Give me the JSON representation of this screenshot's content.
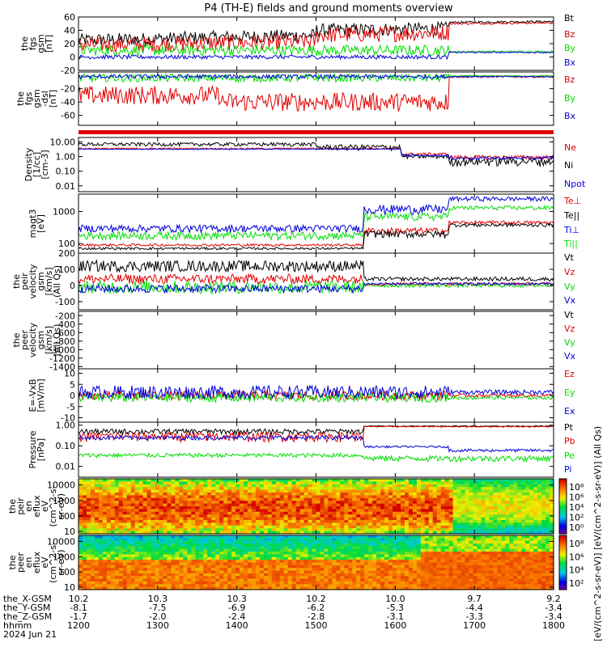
{
  "chart_data": {
    "type": "line",
    "title": "P4 (TH-E) fields and ground moments overview",
    "time_axis": {
      "ticks": [
        "1200",
        "1300",
        "1400",
        "1500",
        "1600",
        "1700",
        "1800"
      ],
      "rows": [
        {
          "label": "the_X-GSM",
          "values": [
            "10.2",
            "10.3",
            "10.3",
            "10.2",
            "10.0",
            "9.7",
            "9.2"
          ]
        },
        {
          "label": "the_Y-GSM",
          "values": [
            "-8.1",
            "-7.5",
            "-6.9",
            "-6.2",
            "-5.3",
            "-4.4",
            "-3.4"
          ]
        },
        {
          "label": "the_Z-GSM",
          "values": [
            "-1.7",
            "-2.0",
            "-2.4",
            "-2.8",
            "-3.1",
            "-3.3",
            "-3.4"
          ]
        },
        {
          "label": "hhmm",
          "values": [
            "1200",
            "1300",
            "1400",
            "1500",
            "1600",
            "1700",
            "1800"
          ]
        }
      ],
      "date": "2024 Jun 21"
    },
    "panels": [
      {
        "id": "fgs_gsm",
        "ylabel": [
          "the",
          "fgs",
          "gsm",
          "[nT]"
        ],
        "ylim": [
          -20,
          60
        ],
        "yticks": [
          "60",
          "40",
          "20",
          "0",
          "-20"
        ],
        "scale": "linear",
        "series": [
          {
            "name": "Bt",
            "color": "#000000"
          },
          {
            "name": "Bz",
            "color": "#e00000"
          },
          {
            "name": "By",
            "color": "#00dd00"
          },
          {
            "name": "Bx",
            "color": "#0000dd"
          }
        ]
      },
      {
        "id": "fgs_dsl",
        "ylabel": [
          "the",
          "fgs",
          "gsm",
          "-dsl",
          "[nT]"
        ],
        "ylim": [
          -75,
          5
        ],
        "yticks": [
          "-20",
          "-40",
          "-60"
        ],
        "scale": "linear",
        "series": [
          {
            "name": "Bz",
            "color": "#e00000"
          },
          {
            "name": "By",
            "color": "#00dd00"
          },
          {
            "name": "Bx",
            "color": "#0000dd"
          }
        ]
      },
      {
        "id": "density",
        "ylabel": [
          "Density",
          "[1/cc]",
          "[cm-3]"
        ],
        "ylim": [
          0.004,
          20
        ],
        "yticks": [
          "10.00",
          "1.00",
          "0.10",
          "0.01"
        ],
        "scale": "log",
        "series": [
          {
            "name": "Ne",
            "color": "#e00000"
          },
          {
            "name": "Ni",
            "color": "#000000"
          },
          {
            "name": "Npot",
            "color": "#0000dd"
          }
        ]
      },
      {
        "id": "temperature",
        "ylabel": [
          "magt3",
          "[eV]"
        ],
        "ylim": [
          50,
          3500
        ],
        "yticks": [
          "1000",
          "100"
        ],
        "scale": "log",
        "series": [
          {
            "name": "Te⊥",
            "color": "#e00000"
          },
          {
            "name": "Te||",
            "color": "#000000"
          },
          {
            "name": "Ti⊥",
            "color": "#0000dd"
          },
          {
            "name": "Ti||",
            "color": "#00dd00"
          }
        ]
      },
      {
        "id": "peir_velocity",
        "ylabel": [
          "the",
          "peir",
          "velocity",
          "gsm",
          "[km/s]",
          "(All Qs)"
        ],
        "ylim": [
          -150,
          200
        ],
        "yticks": [
          "200",
          "100",
          "0",
          "-100"
        ],
        "scale": "linear",
        "series": [
          {
            "name": "Vt",
            "color": "#000000"
          },
          {
            "name": "Vz",
            "color": "#e00000"
          },
          {
            "name": "Vy",
            "color": "#00dd00"
          },
          {
            "name": "Vx",
            "color": "#0000dd"
          }
        ]
      },
      {
        "id": "peer_velocity",
        "ylabel": [
          "the",
          "peer",
          "velocity",
          "gsm",
          "[km/s]",
          "(All Qs)"
        ],
        "ylim": [
          -1450,
          -100
        ],
        "yticks": [
          "-200",
          "-400",
          "-600",
          "-800",
          "-1000",
          "-1200",
          "-1400"
        ],
        "scale": "linear",
        "series": [
          {
            "name": "Vt",
            "color": "#000000"
          },
          {
            "name": "Vz",
            "color": "#e00000"
          },
          {
            "name": "Vy",
            "color": "#00dd00"
          },
          {
            "name": "Vx",
            "color": "#0000dd"
          }
        ]
      },
      {
        "id": "efield",
        "ylabel": [
          "E=-VxB",
          "[mV/m]"
        ],
        "ylim": [
          -12,
          12
        ],
        "yticks": [
          "10",
          "5",
          "0",
          "-5",
          "-10"
        ],
        "scale": "linear",
        "series": [
          {
            "name": "Ez",
            "color": "#e00000"
          },
          {
            "name": "Ey",
            "color": "#00dd00"
          },
          {
            "name": "Ex",
            "color": "#0000dd"
          }
        ]
      },
      {
        "id": "pressure",
        "ylabel": [
          "Pressure",
          "[nPa]"
        ],
        "ylim": [
          0.003,
          1.4
        ],
        "yticks": [
          "1.00",
          "0.10",
          "0.01"
        ],
        "scale": "log",
        "series": [
          {
            "name": "Pt",
            "color": "#000000"
          },
          {
            "name": "Pb",
            "color": "#e00000"
          },
          {
            "name": "Pe",
            "color": "#00dd00"
          },
          {
            "name": "Pi",
            "color": "#0000dd"
          }
        ]
      },
      {
        "id": "peir_spec",
        "type": "heatmap",
        "ylabel": [
          "the",
          "peir",
          "en",
          "eflux",
          "eV",
          "(cm^2-s-",
          "sr-eV)"
        ],
        "ylim": [
          7,
          25000
        ],
        "yticks": [
          "10000",
          "1000",
          "100",
          "10"
        ],
        "scale": "log"
      },
      {
        "id": "peer_spec",
        "type": "heatmap",
        "ylabel": [
          "the",
          "peer",
          "en",
          "eflux",
          "eV",
          "(cm^2-s-",
          "sr-eV)"
        ],
        "ylim": [
          7,
          25000
        ],
        "yticks": [
          "10000",
          "1000",
          "100",
          "10"
        ],
        "scale": "log"
      }
    ],
    "colorbars": [
      {
        "ticks": [
          "10⁸",
          "10⁶",
          "10⁴",
          "10²",
          "10⁰"
        ]
      },
      {
        "ticks": [
          "10⁸",
          "10⁶",
          "10⁴",
          "10²"
        ]
      }
    ],
    "colorbar_label": "[eV/(cm^2-s-sr-eV)]  [eV/(cm^2-s-sr-eV)] (All Qs)"
  }
}
